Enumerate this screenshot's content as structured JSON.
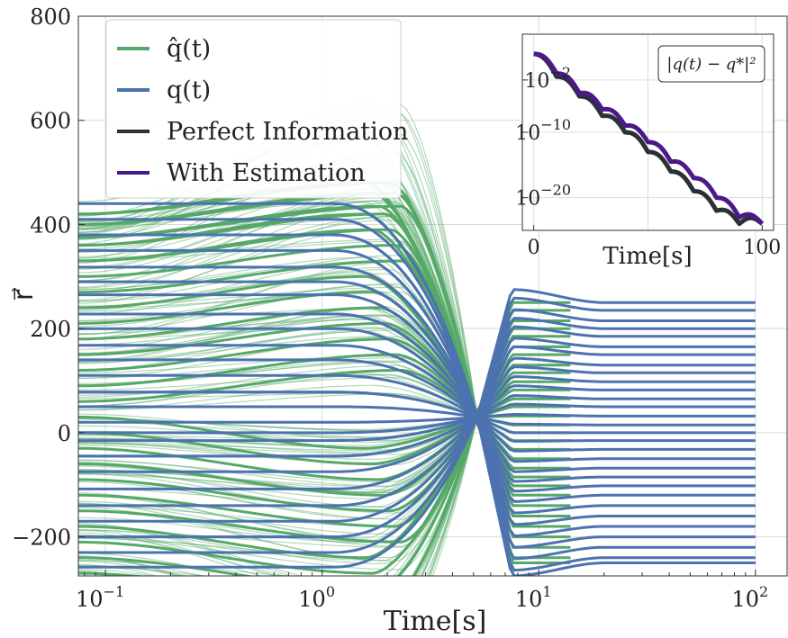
{
  "chart_data": [
    {
      "type": "line",
      "xscale": "log",
      "xlabel": "Time[s]",
      "ylabel": "r⃗",
      "xlim": [
        0.075,
        140
      ],
      "ylim": [
        -275,
        800
      ],
      "xticks": [
        {
          "value": 0.1,
          "base": "10",
          "exp": "−1"
        },
        {
          "value": 1,
          "base": "10",
          "exp": "0"
        },
        {
          "value": 10,
          "base": "10",
          "exp": "1"
        },
        {
          "value": 100,
          "base": "10",
          "exp": "2"
        }
      ],
      "yticks": [
        {
          "value": -200,
          "label": "−200"
        },
        {
          "value": 0,
          "label": "0"
        },
        {
          "value": 200,
          "label": "200"
        },
        {
          "value": 400,
          "label": "400"
        },
        {
          "value": 600,
          "label": "600"
        },
        {
          "value": 800,
          "label": "800"
        }
      ],
      "grid": true,
      "legend_position": "top-left",
      "legend": [
        {
          "label": "q̂(t)",
          "color": "#55a868"
        },
        {
          "label": "q(t)",
          "color": "#4c72b0"
        },
        {
          "label": "Perfect Information",
          "color": "#2a3036"
        },
        {
          "label": "With Estimation",
          "color": "#4b1a8a"
        }
      ],
      "series": [
        {
          "name": "q(t)",
          "color": "#4c72b0",
          "crossing": {
            "x": 5.2,
            "y": 30
          },
          "initial_values": [
            440,
            410,
            380,
            350,
            318,
            290,
            265,
            228,
            200,
            168,
            140,
            110,
            78,
            50,
            20,
            0,
            -15,
            -45,
            -75,
            -108,
            -140,
            -170,
            -200,
            -230,
            -258
          ],
          "final_values": [
            250,
            235,
            215,
            200,
            185,
            165,
            150,
            130,
            115,
            98,
            82,
            65,
            50,
            32,
            15,
            0,
            -15,
            -32,
            -50,
            -68,
            -85,
            -102,
            -120,
            -140,
            -160,
            -180,
            -200,
            -220,
            -240,
            -250
          ]
        },
        {
          "name": "q̂(t)",
          "color": "#55a868",
          "crossing": {
            "x": 5.2,
            "y": 30
          },
          "initial_values": [
            420,
            400,
            375,
            360,
            330,
            300,
            270,
            240,
            210,
            180,
            150,
            120,
            90,
            60,
            30,
            0,
            -30,
            -60,
            -90,
            -120,
            -150,
            -180,
            -210,
            -240,
            -270
          ]
        }
      ]
    },
    {
      "type": "line",
      "yscale": "log",
      "xlabel": "Time[s]",
      "xlim": [
        -5,
        105
      ],
      "ylim_exp": [
        -25,
        5
      ],
      "xticks": [
        {
          "value": 0,
          "label": "0"
        },
        {
          "value": 100,
          "label": "100"
        }
      ],
      "yticks": [
        {
          "exp_value": -2,
          "base": "10",
          "exp": "−2"
        },
        {
          "exp_value": -10,
          "base": "10",
          "exp": "−10"
        },
        {
          "exp_value": -20,
          "base": "10",
          "exp": "−20"
        }
      ],
      "annotation": "|q(t) − q*|²",
      "series": [
        {
          "name": "Perfect Information",
          "color": "#2a3036",
          "x": [
            0,
            10,
            20,
            30,
            40,
            50,
            60,
            70,
            80,
            90,
            100
          ],
          "log10_y": [
            2,
            -1.5,
            -4.5,
            -7.5,
            -10,
            -13,
            -16,
            -19,
            -22,
            -24,
            -24
          ]
        },
        {
          "name": "With Estimation",
          "color": "#4b1a8a",
          "x": [
            0,
            10,
            20,
            30,
            40,
            50,
            60,
            70,
            80,
            90,
            100
          ],
          "log10_y": [
            2,
            -1,
            -4,
            -6.5,
            -9,
            -11.5,
            -14.5,
            -17,
            -20,
            -23,
            -24
          ]
        }
      ]
    }
  ]
}
